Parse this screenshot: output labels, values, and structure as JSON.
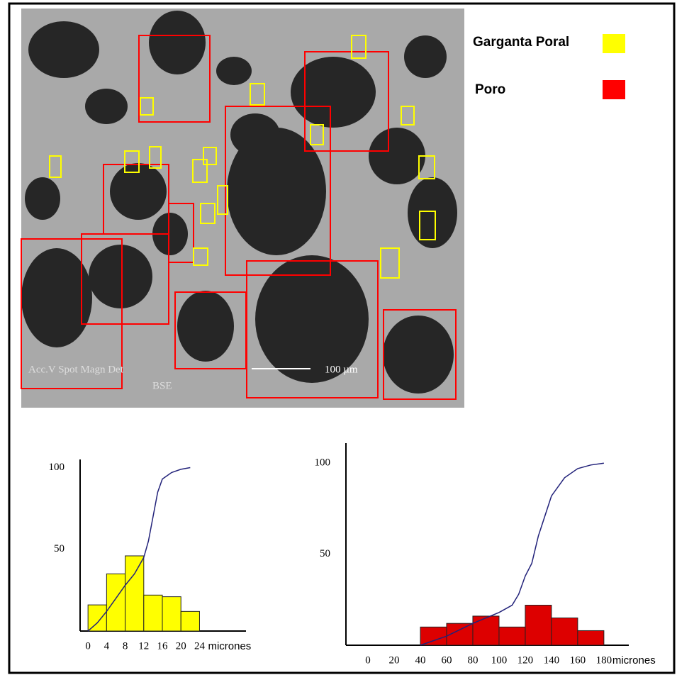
{
  "legend": [
    {
      "label": "Garganta Poral",
      "color": "#ffff00"
    },
    {
      "label": "Poro",
      "color": "#ff0000"
    }
  ],
  "image_text": {
    "scale": "100 µm",
    "info1": "Acc.V  Spot Magn   Det",
    "info2": "BSE"
  },
  "chart_data": [
    {
      "type": "histogram",
      "bins": [
        0,
        4,
        8,
        12,
        16,
        20,
        24
      ],
      "values": [
        16,
        35,
        46,
        22,
        21,
        12
      ],
      "color": "#ffff00",
      "xlim": [
        -1.7,
        34
      ],
      "ylim": [
        0,
        105
      ],
      "xticks": [
        0,
        4,
        8,
        12,
        16,
        20,
        24
      ],
      "yticks": [
        50,
        100
      ],
      "x_label": "micrones",
      "cumulative": {
        "color": "#22227a",
        "x": [
          0,
          2,
          4,
          6,
          8,
          10,
          12,
          13,
          14,
          15,
          16,
          18,
          20,
          22
        ],
        "y": [
          0,
          5,
          12,
          20,
          28,
          35,
          45,
          55,
          70,
          85,
          93,
          97,
          99,
          100
        ]
      }
    },
    {
      "type": "histogram",
      "bins": [
        40,
        60,
        80,
        100,
        120,
        140,
        160,
        180
      ],
      "values": [
        10,
        12,
        16,
        10,
        22,
        15,
        8
      ],
      "color": "#dd0000",
      "xlim": [
        -16.8,
        199
      ],
      "ylim": [
        0,
        111
      ],
      "xticks": [
        0,
        20,
        40,
        60,
        80,
        100,
        120,
        140,
        160,
        180
      ],
      "yticks": [
        50,
        100
      ],
      "x_label": "micrones",
      "cumulative": {
        "color": "#22227a",
        "x": [
          40,
          60,
          80,
          100,
          110,
          115,
          120,
          125,
          130,
          140,
          150,
          160,
          170,
          180
        ],
        "y": [
          0,
          5,
          12,
          18,
          22,
          28,
          38,
          45,
          60,
          82,
          92,
          97,
          99,
          100
        ]
      }
    }
  ]
}
